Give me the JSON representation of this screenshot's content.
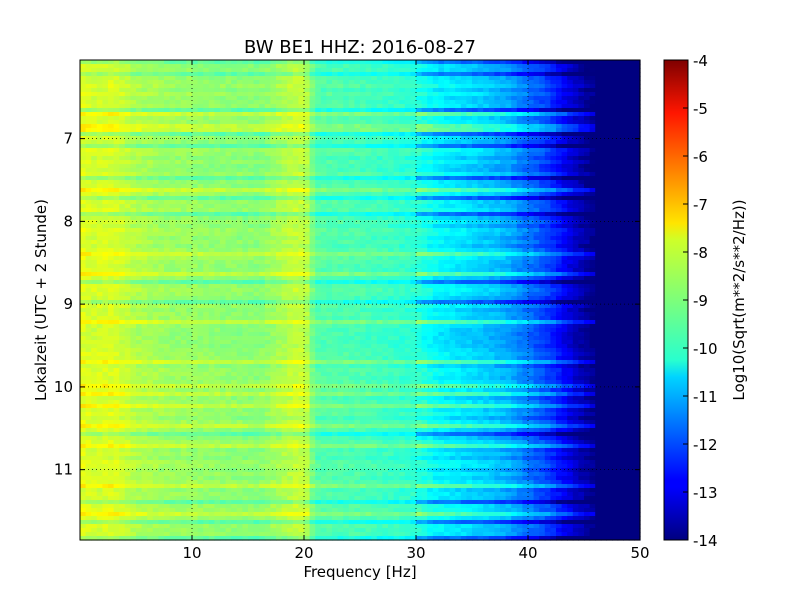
{
  "chart_data": {
    "type": "heatmap",
    "title": "BW BE1 HHZ: 2016-08-27",
    "xlabel": "Frequency [Hz]",
    "ylabel": "Lokalzeit (UTC + 2 Stunde)",
    "xlim": [
      0,
      50
    ],
    "ylim": [
      6.05,
      11.85
    ],
    "y_inverted": true,
    "x_ticks": [
      "10",
      "20",
      "30",
      "40",
      "50"
    ],
    "y_ticks": [
      "7",
      "8",
      "9",
      "10",
      "11"
    ],
    "grid": true,
    "colormap": "jet",
    "colorbar": {
      "label": "Log10(Sqrt(m**2/s**2/Hz))",
      "range": [
        -14,
        -4
      ],
      "ticks": [
        "-4",
        "-5",
        "-6",
        "-7",
        "-8",
        "-9",
        "-10",
        "-11",
        "-12",
        "-13",
        "-14"
      ]
    },
    "spectral_profile": {
      "frequency_hz": [
        0.1,
        1,
        3,
        5,
        8,
        12,
        16,
        19.5,
        20.2,
        21,
        25,
        30,
        32,
        35,
        38,
        40,
        42,
        44,
        46,
        48,
        50
      ],
      "log10_amplitude": [
        -8.0,
        -8.2,
        -8.1,
        -8.5,
        -8.7,
        -8.8,
        -8.9,
        -8.3,
        -8.4,
        -9.4,
        -9.5,
        -9.8,
        -10.3,
        -10.6,
        -11.0,
        -11.6,
        -12.2,
        -13.2,
        -14.0,
        -14.0,
        -14.0
      ]
    },
    "features": [
      "broad yellow/green band below 5 Hz",
      "narrow yellow line near 20 Hz",
      "transition to blue between 30 and 45 Hz",
      "dark blue (< -13.5) above about 45 Hz",
      "horizontal streaks of alternating amplitude across time"
    ]
  }
}
